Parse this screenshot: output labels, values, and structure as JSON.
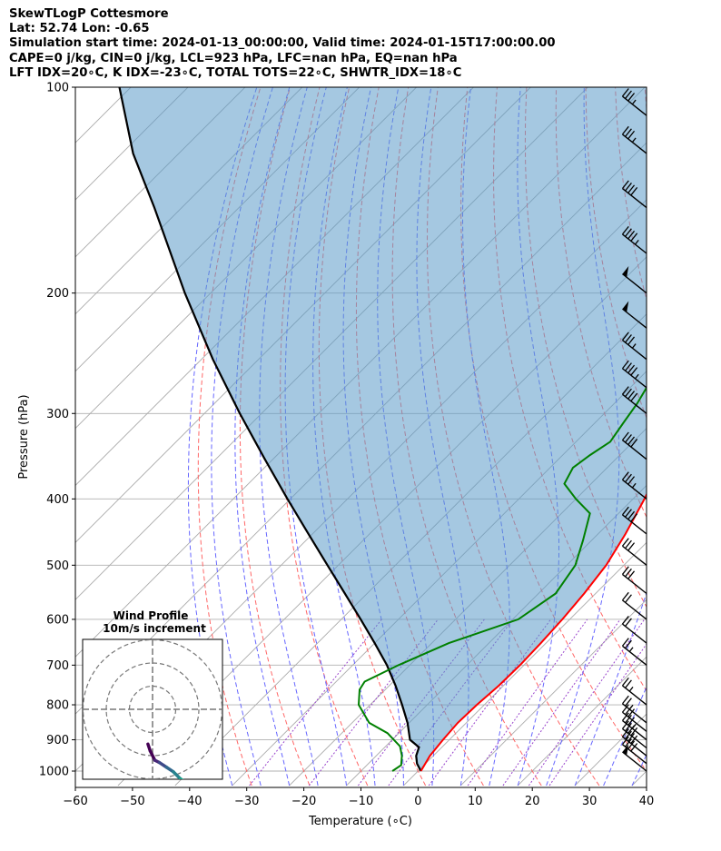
{
  "header": {
    "title": "SkewTLogP Cottesmore",
    "location": "Lat: 52.74   Lon: -0.65",
    "times": "Simulation start time: 2024-01-13_00:00:00, Valid time: 2024-01-15T17:00:00.00",
    "params": "CAPE=0 j/kg, CIN=0 j/kg, LCL=923 hPa, LFC=nan hPa, EQ=nan hPa",
    "indices": "LFT IDX=20∘C, K IDX=-23∘C, TOTAL TOTS=22∘C, SHWTR_IDX=18∘C"
  },
  "chart_data": {
    "type": "skewt-logp",
    "xlabel": "Temperature (∘C)",
    "ylabel": "Pressure (hPa)",
    "xlim": [
      -60,
      40
    ],
    "ylim": [
      1050,
      100
    ],
    "xticks": [
      "−60",
      "−50",
      "−40",
      "−30",
      "−20",
      "−10",
      "0",
      "10",
      "20",
      "30",
      "40"
    ],
    "yticks": [
      {
        "p": 1000,
        "label": "1000"
      },
      {
        "p": 900,
        "label": "900"
      },
      {
        "p": 800,
        "label": "800"
      },
      {
        "p": 700,
        "label": "700"
      },
      {
        "p": 600,
        "label": "600"
      },
      {
        "p": 500,
        "label": "500"
      },
      {
        "p": 400,
        "label": "400"
      },
      {
        "p": 300,
        "label": "300"
      },
      {
        "p": 200,
        "label": "200"
      },
      {
        "p": 100,
        "label": "100"
      }
    ],
    "grid": true,
    "colors": {
      "temperature": "#ff0000",
      "dewpoint": "#008000",
      "parcel": "#000000",
      "cin_fill": "#5b9bc9",
      "dry_adiabats": "#ff6666",
      "moist_adiabats": "#6666ff",
      "mixing_ratio": "#9944cc",
      "isotherms": "#aaaaaa"
    },
    "series": [
      {
        "key": "temperature",
        "points": [
          [
            0.5,
            1000
          ],
          [
            -0.6,
            950
          ],
          [
            -1.1,
            900
          ],
          [
            -1.5,
            850
          ],
          [
            -1.3,
            800
          ],
          [
            -0.8,
            750
          ],
          [
            -0.7,
            700
          ],
          [
            -0.9,
            650
          ],
          [
            -1.3,
            600
          ],
          [
            -2.0,
            550
          ],
          [
            -3.1,
            500
          ],
          [
            -5.2,
            450
          ],
          [
            -8.0,
            400
          ],
          [
            -11.6,
            350
          ],
          [
            -15.3,
            300
          ],
          [
            -17.7,
            275
          ],
          [
            -16.8,
            250
          ],
          [
            -17.3,
            225
          ],
          [
            -17.5,
            200
          ],
          [
            -16.4,
            190
          ],
          [
            -15.3,
            180
          ],
          [
            -13.4,
            170
          ],
          [
            -12.7,
            160
          ],
          [
            -12.6,
            150
          ],
          [
            -11.7,
            140
          ],
          [
            -10.6,
            130
          ],
          [
            -7.1,
            120
          ],
          [
            -4.7,
            110
          ],
          [
            -3.0,
            100
          ]
        ]
      },
      {
        "key": "dewpoint",
        "points": [
          [
            -4.5,
            1000
          ],
          [
            -4.0,
            980
          ],
          [
            -5.5,
            950
          ],
          [
            -7.5,
            920
          ],
          [
            -12.0,
            880
          ],
          [
            -17.0,
            850
          ],
          [
            -22.0,
            800
          ],
          [
            -24.5,
            760
          ],
          [
            -25.0,
            740
          ],
          [
            -22.0,
            700
          ],
          [
            -17.0,
            650
          ],
          [
            -9.0,
            600
          ],
          [
            -7.0,
            550
          ],
          [
            -8.5,
            500
          ],
          [
            -11.5,
            460
          ],
          [
            -15.0,
            420
          ],
          [
            -20.0,
            400
          ],
          [
            -24.7,
            380
          ],
          [
            -26.0,
            360
          ],
          [
            -25.2,
            345
          ],
          [
            -24.0,
            330
          ],
          [
            -25.0,
            310
          ],
          [
            -26.0,
            290
          ],
          [
            -27.5,
            270
          ],
          [
            -29.5,
            250
          ],
          [
            -28.7,
            230
          ],
          [
            -28.0,
            215
          ],
          [
            -28.5,
            200
          ],
          [
            -28.8,
            185
          ],
          [
            -29.7,
            165
          ],
          [
            -31.3,
            150
          ],
          [
            -31.7,
            140
          ],
          [
            -32.2,
            130
          ],
          [
            -31.2,
            120
          ],
          [
            -30.2,
            110
          ],
          [
            -29.5,
            100
          ]
        ]
      },
      {
        "key": "parcel",
        "points": [
          [
            0.5,
            1000
          ],
          [
            -1.5,
            975
          ],
          [
            -3.0,
            950
          ],
          [
            -4.0,
            923
          ],
          [
            -6.9,
            900
          ],
          [
            -10.3,
            850
          ],
          [
            -14.4,
            800
          ],
          [
            -18.9,
            750
          ],
          [
            -24.0,
            700
          ],
          [
            -30.0,
            650
          ],
          [
            -36.6,
            600
          ],
          [
            -43.9,
            550
          ],
          [
            -51.9,
            500
          ],
          [
            -60.7,
            450
          ],
          [
            -70.5,
            400
          ],
          [
            -81.4,
            350
          ],
          [
            -93.8,
            300
          ],
          [
            -108.0,
            250
          ],
          [
            -124.5,
            200
          ],
          [
            -144.8,
            150
          ],
          [
            -158.0,
            125
          ],
          [
            -172.0,
            100
          ]
        ]
      }
    ],
    "barbs": [
      {
        "p": 1000,
        "speed": 50
      },
      {
        "p": 975,
        "speed": 40
      },
      {
        "p": 950,
        "speed": 40
      },
      {
        "p": 925,
        "speed": 40
      },
      {
        "p": 900,
        "speed": 35
      },
      {
        "p": 875,
        "speed": 30
      },
      {
        "p": 850,
        "speed": 25
      },
      {
        "p": 800,
        "speed": 25
      },
      {
        "p": 700,
        "speed": 25
      },
      {
        "p": 650,
        "speed": 20
      },
      {
        "p": 600,
        "speed": 20
      },
      {
        "p": 550,
        "speed": 30
      },
      {
        "p": 500,
        "speed": 30
      },
      {
        "p": 450,
        "speed": 40
      },
      {
        "p": 400,
        "speed": 35
      },
      {
        "p": 350,
        "speed": 40
      },
      {
        "p": 300,
        "speed": 40
      },
      {
        "p": 275,
        "speed": 45
      },
      {
        "p": 250,
        "speed": 35
      },
      {
        "p": 225,
        "speed": 50
      },
      {
        "p": 200,
        "speed": 50
      },
      {
        "p": 175,
        "speed": 45
      },
      {
        "p": 150,
        "speed": 40
      },
      {
        "p": 125,
        "speed": 35
      },
      {
        "p": 110,
        "speed": 35
      }
    ],
    "wind_profile": {
      "title": "Wind Profile",
      "subtitle": "10m/s increment",
      "rings": [
        10,
        20,
        30
      ],
      "hodograph": [
        [
          -2,
          -15
        ],
        [
          -1,
          -18
        ],
        [
          1,
          -22
        ],
        [
          3,
          -23
        ],
        [
          6,
          -25
        ],
        [
          9,
          -27
        ],
        [
          12,
          -30
        ],
        [
          15,
          -32
        ],
        [
          18,
          -33
        ],
        [
          21,
          -34
        ],
        [
          24,
          -35
        ],
        [
          27,
          -36
        ],
        [
          29,
          -38
        ]
      ],
      "colormap": [
        "#440154",
        "#482878",
        "#3e4a89",
        "#31688e",
        "#26828e",
        "#1f9e89",
        "#35b779",
        "#6ece58",
        "#b5de2b",
        "#fde725"
      ]
    }
  }
}
